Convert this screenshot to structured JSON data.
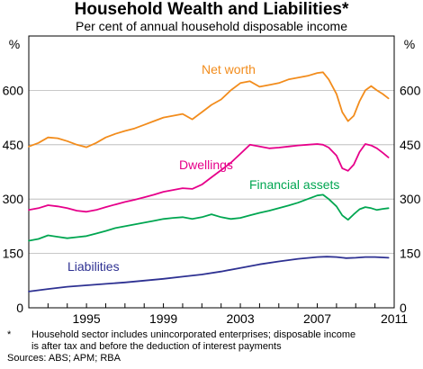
{
  "title": "Household Wealth and Liabilities*",
  "subtitle": "Per cent of annual household disposable income",
  "footnote_marker": "*",
  "footnote_line1": "Household sector includes unincorporated enterprises; disposable income",
  "footnote_line2": "is after tax and before the deduction of interest payments",
  "sources": "Sources:  ABS; APM; RBA",
  "chart_data": {
    "type": "line",
    "title": "Household Wealth and Liabilities*",
    "subtitle": "Per cent of annual household disposable income",
    "ylabel_left": "%",
    "ylabel_right": "%",
    "xlim": [
      1992.0,
      2011.0
    ],
    "ylim": [
      0,
      750
    ],
    "x_ticks": [
      1995,
      1999,
      2003,
      2007,
      2011
    ],
    "y_ticks": [
      0,
      150,
      300,
      450,
      600
    ],
    "grid": true,
    "series": [
      {
        "name": "Net worth",
        "color": "#F28C1C",
        "x": [
          1992.0,
          1992.5,
          1993.0,
          1993.5,
          1994.0,
          1994.5,
          1995.0,
          1995.5,
          1996.0,
          1996.5,
          1997.0,
          1997.5,
          1998.0,
          1998.5,
          1999.0,
          1999.5,
          2000.0,
          2000.5,
          2001.0,
          2001.5,
          2002.0,
          2002.5,
          2003.0,
          2003.5,
          2004.0,
          2004.5,
          2005.0,
          2005.5,
          2006.0,
          2006.5,
          2007.0,
          2007.3,
          2007.6,
          2008.0,
          2008.3,
          2008.6,
          2008.9,
          2009.2,
          2009.5,
          2009.8,
          2010.1,
          2010.4,
          2010.7
        ],
        "y": [
          445,
          455,
          470,
          468,
          460,
          450,
          443,
          455,
          470,
          480,
          488,
          495,
          505,
          515,
          525,
          530,
          535,
          520,
          540,
          560,
          575,
          600,
          620,
          625,
          610,
          615,
          620,
          630,
          635,
          640,
          648,
          650,
          630,
          590,
          540,
          515,
          530,
          570,
          600,
          612,
          600,
          590,
          578
        ]
      },
      {
        "name": "Dwellings",
        "color": "#E6008A",
        "x": [
          1992.0,
          1992.5,
          1993.0,
          1993.5,
          1994.0,
          1994.5,
          1995.0,
          1995.5,
          1996.0,
          1996.5,
          1997.0,
          1997.5,
          1998.0,
          1998.5,
          1999.0,
          1999.5,
          2000.0,
          2000.5,
          2001.0,
          2001.5,
          2002.0,
          2002.5,
          2003.0,
          2003.5,
          2004.0,
          2004.5,
          2005.0,
          2005.5,
          2006.0,
          2006.5,
          2007.0,
          2007.3,
          2007.6,
          2008.0,
          2008.3,
          2008.6,
          2008.9,
          2009.2,
          2009.5,
          2009.8,
          2010.1,
          2010.4,
          2010.7
        ],
        "y": [
          270,
          275,
          283,
          280,
          275,
          268,
          265,
          270,
          278,
          285,
          292,
          298,
          305,
          312,
          320,
          325,
          330,
          328,
          340,
          360,
          380,
          400,
          425,
          450,
          445,
          440,
          442,
          445,
          448,
          450,
          452,
          450,
          442,
          420,
          385,
          378,
          395,
          430,
          452,
          448,
          440,
          428,
          415
        ]
      },
      {
        "name": "Financial assets",
        "color": "#00A651",
        "x": [
          1992.0,
          1992.5,
          1993.0,
          1993.5,
          1994.0,
          1994.5,
          1995.0,
          1995.5,
          1996.0,
          1996.5,
          1997.0,
          1997.5,
          1998.0,
          1998.5,
          1999.0,
          1999.5,
          2000.0,
          2000.5,
          2001.0,
          2001.5,
          2002.0,
          2002.5,
          2003.0,
          2003.5,
          2004.0,
          2004.5,
          2005.0,
          2005.5,
          2006.0,
          2006.5,
          2007.0,
          2007.3,
          2007.6,
          2008.0,
          2008.3,
          2008.6,
          2008.9,
          2009.2,
          2009.5,
          2009.8,
          2010.1,
          2010.4,
          2010.7
        ],
        "y": [
          185,
          190,
          200,
          196,
          192,
          195,
          198,
          205,
          212,
          220,
          225,
          230,
          235,
          240,
          245,
          248,
          250,
          245,
          250,
          258,
          250,
          245,
          248,
          255,
          262,
          268,
          275,
          282,
          290,
          300,
          310,
          312,
          300,
          280,
          255,
          243,
          258,
          272,
          278,
          275,
          270,
          273,
          275
        ]
      },
      {
        "name": "Liabilities",
        "color": "#2E3192",
        "x": [
          1992.0,
          1993.0,
          1994.0,
          1995.0,
          1996.0,
          1997.0,
          1998.0,
          1999.0,
          2000.0,
          2001.0,
          2002.0,
          2003.0,
          2004.0,
          2005.0,
          2006.0,
          2007.0,
          2007.5,
          2008.0,
          2008.5,
          2009.0,
          2009.5,
          2010.0,
          2010.7
        ],
        "y": [
          45,
          52,
          58,
          62,
          66,
          70,
          75,
          80,
          86,
          92,
          100,
          110,
          120,
          128,
          135,
          140,
          141,
          140,
          137,
          138,
          140,
          140,
          138
        ]
      }
    ]
  }
}
